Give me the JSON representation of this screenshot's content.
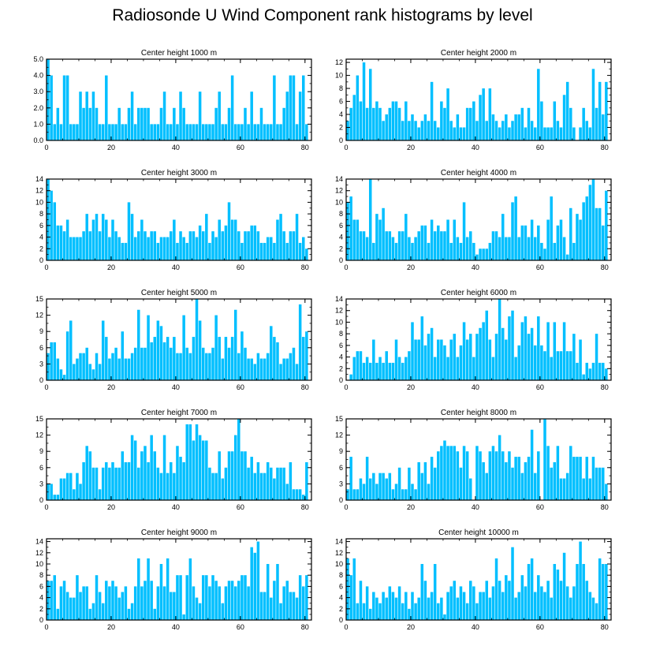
{
  "title": "Radiosonde U Wind Component rank histograms by level",
  "colors": {
    "bar": "#00BFFF",
    "frame": "#000000"
  },
  "chart_data": [
    {
      "type": "bar",
      "title": "Center height 1000 m",
      "xlim": [
        0,
        82
      ],
      "ylim": [
        0,
        5
      ],
      "yticks": [
        0,
        1,
        2,
        3,
        4,
        5
      ],
      "ytick_labels": [
        "0.0",
        "1.0",
        "2.0",
        "3.0",
        "4.0",
        "5.0"
      ],
      "xticks": [
        0,
        20,
        40,
        60,
        80
      ],
      "xtick_labels": [
        "0",
        "20",
        "40",
        "60",
        "80"
      ],
      "values": [
        5,
        4,
        1,
        2,
        1,
        4,
        4,
        1,
        1,
        1,
        3,
        2,
        3,
        2,
        3,
        2,
        1,
        1,
        4,
        1,
        1,
        1,
        2,
        1,
        1,
        2,
        3,
        1,
        2,
        2,
        2,
        2,
        1,
        1,
        1,
        2,
        3,
        1,
        1,
        2,
        1,
        3,
        2,
        1,
        1,
        1,
        1,
        3,
        1,
        1,
        1,
        1,
        2,
        3,
        1,
        1,
        2,
        4,
        1,
        1,
        1,
        2,
        1,
        3,
        1,
        1,
        2,
        1,
        1,
        1,
        4,
        1,
        1,
        2,
        3,
        4,
        4,
        1,
        3,
        4,
        1
      ]
    },
    {
      "type": "bar",
      "title": "Center height 2000 m",
      "xlim": [
        0,
        82
      ],
      "ylim": [
        0,
        12.5
      ],
      "yticks": [
        0,
        2,
        4,
        6,
        8,
        10,
        12
      ],
      "ytick_labels": [
        "0",
        "2",
        "4",
        "6",
        "8",
        "10",
        "12"
      ],
      "xticks": [
        0,
        20,
        40,
        60,
        80
      ],
      "xtick_labels": [
        "0",
        "20",
        "40",
        "60",
        "80"
      ],
      "values": [
        3,
        5,
        7,
        10,
        6,
        12,
        5,
        11,
        5,
        6,
        5,
        3,
        4,
        5,
        6,
        6,
        5,
        3,
        6,
        3,
        4,
        3,
        2,
        3,
        4,
        3,
        9,
        3,
        2,
        6,
        5,
        8,
        3,
        2,
        4,
        2,
        2,
        5,
        5,
        6,
        3,
        7,
        8,
        3,
        8,
        4,
        3,
        2,
        3,
        4,
        2,
        3,
        4,
        4,
        5,
        2,
        5,
        3,
        2,
        11,
        6,
        2,
        2,
        2,
        6,
        3,
        2,
        7,
        9,
        5,
        2,
        0,
        2,
        5,
        3,
        2,
        11,
        5,
        9,
        4,
        9
      ]
    },
    {
      "type": "bar",
      "title": "Center height 3000 m",
      "xlim": [
        0,
        82
      ],
      "ylim": [
        0,
        14
      ],
      "yticks": [
        0,
        2,
        4,
        6,
        8,
        10,
        12,
        14
      ],
      "ytick_labels": [
        "0",
        "2",
        "4",
        "6",
        "8",
        "10",
        "12",
        "14"
      ],
      "xticks": [
        0,
        20,
        40,
        60,
        80
      ],
      "xtick_labels": [
        "0",
        "20",
        "40",
        "60",
        "80"
      ],
      "values": [
        14,
        12,
        10,
        6,
        6,
        5,
        7,
        4,
        4,
        4,
        4,
        5,
        8,
        5,
        7,
        8,
        5,
        8,
        7,
        4,
        7,
        5,
        4,
        3,
        3,
        10,
        8,
        4,
        5,
        7,
        5,
        4,
        5,
        5,
        3,
        4,
        4,
        4,
        5,
        7,
        3,
        5,
        4,
        3,
        5,
        5,
        4,
        6,
        5,
        8,
        3,
        5,
        4,
        7,
        5,
        6,
        10,
        7,
        7,
        5,
        3,
        5,
        5,
        6,
        6,
        5,
        3,
        3,
        4,
        4,
        3,
        7,
        8,
        5,
        3,
        5,
        5,
        8,
        3,
        4,
        2
      ]
    },
    {
      "type": "bar",
      "title": "Center height 4000 m",
      "xlim": [
        0,
        82
      ],
      "ylim": [
        0,
        14
      ],
      "yticks": [
        0,
        2,
        4,
        6,
        8,
        10,
        12,
        14
      ],
      "ytick_labels": [
        "0",
        "2",
        "4",
        "6",
        "8",
        "10",
        "12",
        "14"
      ],
      "xticks": [
        0,
        20,
        40,
        60,
        80
      ],
      "xtick_labels": [
        "0",
        "20",
        "40",
        "60",
        "80"
      ],
      "values": [
        10,
        11,
        7,
        7,
        5,
        5,
        4,
        14,
        3,
        8,
        7,
        9,
        5,
        5,
        4,
        3,
        5,
        5,
        8,
        4,
        3,
        4,
        5,
        6,
        6,
        3,
        7,
        5,
        6,
        5,
        5,
        7,
        3,
        7,
        4,
        3,
        10,
        4,
        5,
        3,
        1,
        2,
        2,
        2,
        3,
        5,
        5,
        4,
        8,
        4,
        4,
        10,
        11,
        4,
        6,
        6,
        4,
        7,
        4,
        6,
        3,
        2,
        7,
        11,
        3,
        6,
        7,
        4,
        1,
        9,
        3,
        8,
        7,
        10,
        11,
        13,
        14,
        9,
        9,
        6,
        12
      ]
    },
    {
      "type": "bar",
      "title": "Center height 5000 m",
      "xlim": [
        0,
        82
      ],
      "ylim": [
        0,
        15
      ],
      "yticks": [
        0,
        3,
        6,
        9,
        12,
        15
      ],
      "ytick_labels": [
        "0",
        "3",
        "6",
        "9",
        "12",
        "15"
      ],
      "xticks": [
        0,
        20,
        40,
        60,
        80
      ],
      "xtick_labels": [
        "0",
        "20",
        "40",
        "60",
        "80"
      ],
      "values": [
        5,
        7,
        7,
        4,
        2,
        1,
        9,
        11,
        3,
        4,
        5,
        5,
        6,
        3,
        2,
        5,
        3,
        11,
        8,
        4,
        5,
        6,
        4,
        9,
        4,
        4,
        5,
        6,
        13,
        6,
        6,
        12,
        7,
        8,
        11,
        10,
        7,
        8,
        6,
        8,
        5,
        5,
        12,
        6,
        5,
        8,
        15,
        11,
        6,
        5,
        5,
        6,
        12,
        8,
        4,
        8,
        6,
        8,
        13,
        5,
        9,
        6,
        4,
        4,
        3,
        5,
        4,
        4,
        5,
        10,
        8,
        7,
        3,
        4,
        4,
        5,
        6,
        3,
        14,
        8,
        9
      ]
    },
    {
      "type": "bar",
      "title": "Center height 6000 m",
      "xlim": [
        0,
        82
      ],
      "ylim": [
        0,
        14
      ],
      "yticks": [
        0,
        2,
        4,
        6,
        8,
        10,
        12,
        14
      ],
      "ytick_labels": [
        "0",
        "2",
        "4",
        "6",
        "8",
        "10",
        "12",
        "14"
      ],
      "xticks": [
        0,
        20,
        40,
        60,
        80
      ],
      "xtick_labels": [
        "0",
        "20",
        "40",
        "60",
        "80"
      ],
      "values": [
        0,
        1,
        4,
        5,
        5,
        3,
        4,
        3,
        7,
        3,
        4,
        3,
        5,
        3,
        3,
        7,
        4,
        3,
        4,
        5,
        10,
        7,
        7,
        11,
        6,
        8,
        9,
        4,
        7,
        7,
        6,
        4,
        7,
        8,
        4,
        6,
        10,
        7,
        8,
        4,
        8,
        9,
        10,
        12,
        7,
        4,
        8,
        14,
        9,
        7,
        11,
        12,
        4,
        6,
        10,
        11,
        8,
        9,
        6,
        11,
        6,
        5,
        10,
        4,
        10,
        5,
        5,
        10,
        5,
        5,
        8,
        3,
        7,
        1,
        3,
        2,
        3,
        8,
        3,
        3,
        2
      ]
    },
    {
      "type": "bar",
      "title": "Center height 7000 m",
      "xlim": [
        0,
        82
      ],
      "ylim": [
        0,
        15
      ],
      "yticks": [
        0,
        3,
        6,
        9,
        12,
        15
      ],
      "ytick_labels": [
        "0",
        "3",
        "6",
        "9",
        "12",
        "15"
      ],
      "xticks": [
        0,
        20,
        40,
        60,
        80
      ],
      "xtick_labels": [
        "0",
        "20",
        "40",
        "60",
        "80"
      ],
      "values": [
        3,
        3,
        1,
        1,
        4,
        4,
        5,
        5,
        2,
        5,
        3,
        7,
        10,
        9,
        6,
        6,
        2,
        6,
        7,
        6,
        7,
        6,
        6,
        9,
        7,
        7,
        12,
        11,
        6,
        9,
        10,
        7,
        12,
        9,
        6,
        5,
        12,
        5,
        7,
        5,
        10,
        8,
        7,
        14,
        14,
        11,
        14,
        12,
        11,
        11,
        6,
        5,
        5,
        9,
        4,
        6,
        9,
        9,
        12,
        15,
        9,
        9,
        6,
        8,
        5,
        7,
        5,
        5,
        7,
        6,
        4,
        6,
        6,
        6,
        3,
        7,
        2,
        2,
        2,
        1,
        7
      ]
    },
    {
      "type": "bar",
      "title": "Center height 8000 m",
      "xlim": [
        0,
        82
      ],
      "ylim": [
        0,
        15
      ],
      "yticks": [
        0,
        3,
        6,
        9,
        12,
        15
      ],
      "ytick_labels": [
        "0",
        "3",
        "6",
        "9",
        "12",
        "15"
      ],
      "xticks": [
        0,
        20,
        40,
        60,
        80
      ],
      "xtick_labels": [
        "0",
        "20",
        "40",
        "60",
        "80"
      ],
      "values": [
        2,
        8,
        2,
        2,
        4,
        3,
        8,
        4,
        5,
        3,
        5,
        5,
        4,
        5,
        2,
        3,
        6,
        2,
        2,
        6,
        3,
        2,
        7,
        5,
        7,
        3,
        8,
        6,
        9,
        10,
        11,
        10,
        10,
        10,
        9,
        6,
        10,
        9,
        4,
        0,
        10,
        9,
        7,
        5,
        9,
        10,
        9,
        12,
        9,
        7,
        9,
        6,
        8,
        8,
        5,
        7,
        8,
        13,
        5,
        9,
        0,
        15,
        10,
        6,
        7,
        10,
        4,
        4,
        5,
        10,
        8,
        8,
        8,
        4,
        8,
        4,
        8,
        6,
        6,
        6,
        3
      ]
    },
    {
      "type": "bar",
      "title": "Center height 9000 m",
      "xlim": [
        0,
        82
      ],
      "ylim": [
        0,
        14.5
      ],
      "yticks": [
        0,
        2,
        4,
        6,
        8,
        10,
        12,
        14
      ],
      "ytick_labels": [
        "0",
        "2",
        "4",
        "6",
        "8",
        "10",
        "12",
        "14"
      ],
      "xticks": [
        0,
        20,
        40,
        60,
        80
      ],
      "xtick_labels": [
        "0",
        "20",
        "40",
        "60",
        "80"
      ],
      "values": [
        7,
        7,
        8,
        2,
        6,
        7,
        5,
        4,
        4,
        8,
        5,
        6,
        6,
        2,
        3,
        8,
        5,
        3,
        7,
        6,
        7,
        6,
        4,
        5,
        6,
        2,
        3,
        6,
        11,
        6,
        7,
        11,
        7,
        2,
        6,
        10,
        6,
        11,
        5,
        5,
        8,
        8,
        1,
        8,
        11,
        6,
        4,
        3,
        8,
        8,
        6,
        8,
        7,
        6,
        3,
        6,
        7,
        7,
        6,
        7,
        8,
        8,
        6,
        13,
        12,
        14,
        5,
        5,
        10,
        4,
        7,
        10,
        3,
        6,
        7,
        5,
        5,
        4,
        8,
        6,
        8
      ]
    },
    {
      "type": "bar",
      "title": "Center height 10000 m",
      "xlim": [
        0,
        82
      ],
      "ylim": [
        0,
        14.5
      ],
      "yticks": [
        0,
        2,
        4,
        6,
        8,
        10,
        12,
        14
      ],
      "ytick_labels": [
        "0",
        "2",
        "4",
        "6",
        "8",
        "10",
        "12",
        "14"
      ],
      "xticks": [
        0,
        20,
        40,
        60,
        80
      ],
      "xtick_labels": [
        "0",
        "20",
        "40",
        "60",
        "80"
      ],
      "values": [
        11,
        8,
        11,
        3,
        7,
        3,
        6,
        2,
        5,
        4,
        3,
        5,
        4,
        6,
        5,
        4,
        6,
        3,
        5,
        2,
        5,
        3,
        4,
        10,
        7,
        4,
        5,
        10,
        3,
        4,
        1,
        5,
        6,
        7,
        4,
        6,
        5,
        3,
        7,
        6,
        3,
        5,
        5,
        7,
        4,
        6,
        11,
        7,
        5,
        8,
        7,
        13,
        4,
        5,
        8,
        6,
        10,
        11,
        5,
        8,
        6,
        5,
        7,
        4,
        10,
        9,
        7,
        12,
        6,
        4,
        6,
        10,
        14,
        10,
        7,
        5,
        4,
        3,
        11,
        10,
        10
      ]
    }
  ]
}
